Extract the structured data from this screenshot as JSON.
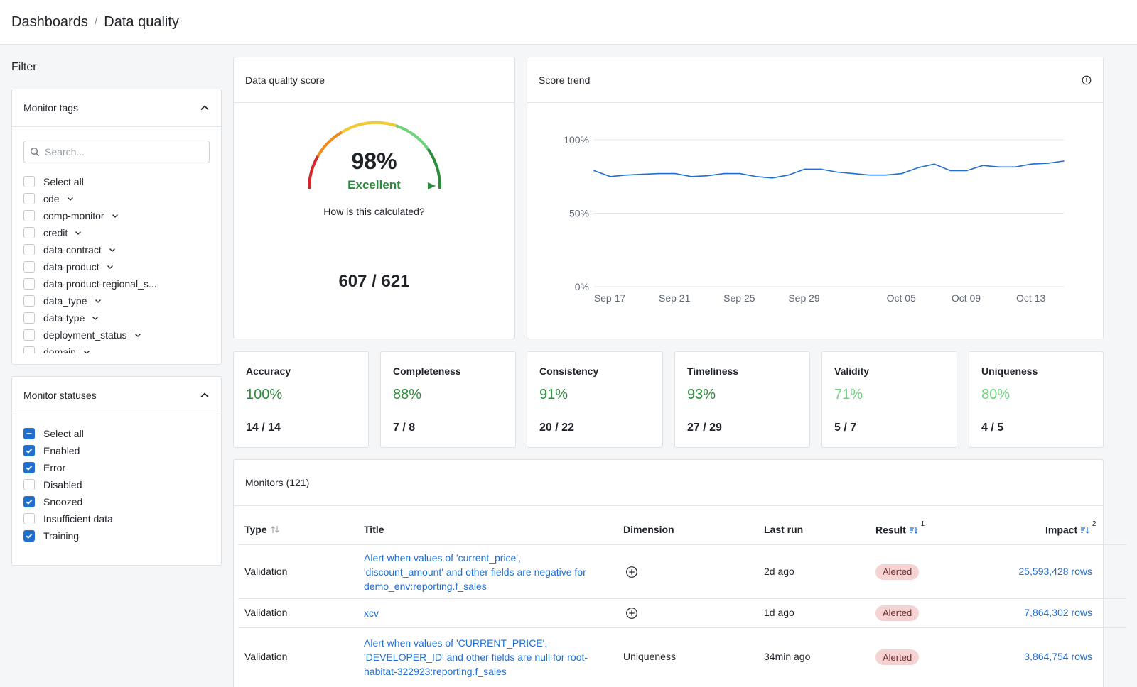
{
  "breadcrumb": {
    "parent": "Dashboards",
    "separator": "/",
    "current": "Data quality"
  },
  "filter": {
    "title": "Filter",
    "monitor_tags": {
      "title": "Monitor tags",
      "search_placeholder": "Search...",
      "items": [
        {
          "label": "Select all",
          "state": "unchecked",
          "expandable": false
        },
        {
          "label": "cde",
          "state": "unchecked",
          "expandable": true
        },
        {
          "label": "comp-monitor",
          "state": "unchecked",
          "expandable": true
        },
        {
          "label": "credit",
          "state": "unchecked",
          "expandable": true
        },
        {
          "label": "data-contract",
          "state": "unchecked",
          "expandable": true
        },
        {
          "label": "data-product",
          "state": "unchecked",
          "expandable": true
        },
        {
          "label": "data-product-regional_s...",
          "state": "unchecked",
          "expandable": false
        },
        {
          "label": "data_type",
          "state": "unchecked",
          "expandable": true
        },
        {
          "label": "data-type",
          "state": "unchecked",
          "expandable": true
        },
        {
          "label": "deployment_status",
          "state": "unchecked",
          "expandable": true
        },
        {
          "label": "domain",
          "state": "unchecked",
          "expandable": true
        }
      ]
    },
    "monitor_statuses": {
      "title": "Monitor statuses",
      "items": [
        {
          "label": "Select all",
          "state": "partial"
        },
        {
          "label": "Enabled",
          "state": "checked"
        },
        {
          "label": "Error",
          "state": "checked"
        },
        {
          "label": "Disabled",
          "state": "unchecked"
        },
        {
          "label": "Snoozed",
          "state": "checked"
        },
        {
          "label": "Insufficient data",
          "state": "unchecked"
        },
        {
          "label": "Training",
          "state": "checked"
        }
      ]
    }
  },
  "score_card": {
    "title": "Data quality score",
    "percent": "98%",
    "percent_value": 98,
    "rating": "Excellent",
    "link": "How is this calculated?",
    "count": "607 / 621"
  },
  "trend_card": {
    "title": "Score trend",
    "info_icon": "info-icon"
  },
  "chart_data": {
    "type": "line",
    "title": "Score trend",
    "ylim": [
      0,
      100
    ],
    "y_ticks": [
      "100%",
      "50%",
      "0%"
    ],
    "x_ticks": [
      "Sep 17",
      "Sep 21",
      "Sep 25",
      "Sep 29",
      "Oct 05",
      "Oct 09",
      "Oct 13"
    ],
    "grid": true,
    "series": [
      {
        "color": "#1f6fd1",
        "x": [
          "Sep 17",
          "Sep 18",
          "Sep 19",
          "Sep 20",
          "Sep 21",
          "Sep 22",
          "Sep 23",
          "Sep 24",
          "Sep 25",
          "Sep 26",
          "Sep 27",
          "Sep 28",
          "Sep 29",
          "Sep 30",
          "Oct 01",
          "Oct 02",
          "Oct 03",
          "Oct 04",
          "Oct 05",
          "Oct 06",
          "Oct 07",
          "Oct 08",
          "Oct 09",
          "Oct 10",
          "Oct 11",
          "Oct 12",
          "Oct 13",
          "Oct 14",
          "Oct 15",
          "Oct 16"
        ],
        "values": [
          79,
          75,
          76,
          76.5,
          77,
          77,
          75,
          75.5,
          77,
          77,
          75,
          74,
          76,
          80,
          80,
          78,
          77,
          76,
          76,
          77,
          81,
          83.5,
          79,
          79,
          82.5,
          81.5,
          81.5,
          83.5,
          84,
          85.5
        ]
      }
    ]
  },
  "dimensions": [
    {
      "name": "Accuracy",
      "percent": "100%",
      "fraction": "14 / 14",
      "color": "#2d8c3c"
    },
    {
      "name": "Completeness",
      "percent": "88%",
      "fraction": "7 / 8",
      "color": "#2d8c3c"
    },
    {
      "name": "Consistency",
      "percent": "91%",
      "fraction": "20 / 22",
      "color": "#2d8c3c"
    },
    {
      "name": "Timeliness",
      "percent": "93%",
      "fraction": "27 / 29",
      "color": "#2d8c3c"
    },
    {
      "name": "Validity",
      "percent": "71%",
      "fraction": "5 / 7",
      "color": "#6fd37d"
    },
    {
      "name": "Uniqueness",
      "percent": "80%",
      "fraction": "4 / 5",
      "color": "#6fd37d"
    }
  ],
  "monitors": {
    "title": "Monitors (121)",
    "columns": {
      "type": "Type",
      "title": "Title",
      "dimension": "Dimension",
      "last_run": "Last run",
      "result": "Result",
      "result_sort": "1",
      "impact": "Impact",
      "impact_sort": "2"
    },
    "rows": [
      {
        "type": "Validation",
        "title_lines": [
          "Alert when values of 'current_price',",
          "'discount_amount' and other fields are negative for",
          "demo_env:reporting.f_sales"
        ],
        "dimension": "",
        "last_run": "2d ago",
        "result": "Alerted",
        "impact": "25,593,428 rows"
      },
      {
        "type": "Validation",
        "title_lines": [
          "xcv"
        ],
        "dimension": "",
        "last_run": "1d ago",
        "result": "Alerted",
        "impact": "7,864,302 rows"
      },
      {
        "type": "Validation",
        "title_lines": [
          "Alert when values of 'CURRENT_PRICE',",
          "'DEVELOPER_ID' and other fields are null for root-",
          "habitat-322923:reporting.f_sales"
        ],
        "dimension": "Uniqueness",
        "last_run": "34min ago",
        "result": "Alerted",
        "impact": "3,864,754 rows"
      }
    ]
  },
  "colors": {
    "accent": "#1f6fd1",
    "good": "#2d8c3c",
    "good_light": "#6fd37d",
    "alert_bg": "#f6d3d3"
  }
}
